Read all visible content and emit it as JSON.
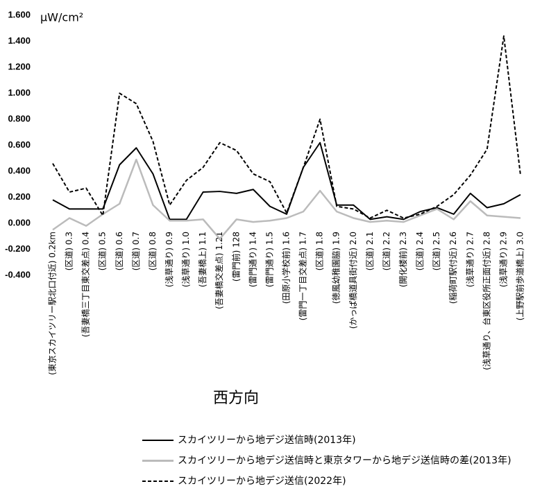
{
  "chart_data": {
    "type": "line",
    "y_unit": "μW/cm²",
    "x_label": "西方向",
    "categories": [
      "(東京スカイツリー駅北口付近) 0.2km",
      "(区道) 0.3",
      "(吾妻橋三丁目東交差点) 0.4",
      "(区道) 0.5",
      "(区道) 0.6",
      "(区道) 0.7",
      "(区道) 0.8",
      "(浅草通り) 0.9",
      "(浅草通り) 1.0",
      "(吾妻橋上) 1.1",
      "(吾妻橋交差点) 1.21",
      "(雷門前) 128",
      "(雷門通り) 1.4",
      "(雷門通り) 1.5",
      "(田原小学校前) 1.6",
      "(雷門一丁目交差点) 1.7",
      "(区道) 1.8",
      "(徳風幼稚園脇) 1.9",
      "(かっぱ橋道具街付近) 2.0",
      "(区道) 2.1",
      "(区道) 2.2",
      "(開化楼前) 2.3",
      "(区道) 2.4",
      "(区道) 2.5",
      "(稲荷町駅付近) 2.6",
      "(浅草通り) 2.7",
      "(浅草通り、台東区役所正面付近) 2.8",
      "(浅草通り) 2.9",
      "(上野駅前歩道橋上) 3.0"
    ],
    "series": [
      {
        "name": "スカイツリーから地デジ送信時(2013年)",
        "color": "#000000",
        "style": "solid",
        "values": [
          0.18,
          0.11,
          0.11,
          0.11,
          0.45,
          0.58,
          0.38,
          0.03,
          0.03,
          0.24,
          0.245,
          0.23,
          0.26,
          0.13,
          0.07,
          0.43,
          0.62,
          0.14,
          0.14,
          0.03,
          0.05,
          0.03,
          0.09,
          0.12,
          0.07,
          0.23,
          0.12,
          0.15,
          0.22
        ]
      },
      {
        "name": "スカイツリーから地デジ送信時と東京タワーから地デジ送信時の差(2013年)",
        "color": "#bbbbbb",
        "style": "solid",
        "values": [
          -0.05,
          0.04,
          -0.02,
          0.07,
          0.15,
          0.49,
          0.14,
          0.02,
          0.02,
          0.03,
          -0.12,
          0.03,
          0.01,
          0.02,
          0.04,
          0.09,
          0.25,
          0.09,
          0.04,
          0.01,
          0.02,
          0.01,
          0.06,
          0.11,
          0.03,
          0.17,
          0.06,
          0.05,
          0.04
        ]
      },
      {
        "name": "スカイツリーから地デジ送信(2022年)",
        "color": "#000000",
        "style": "dashed",
        "values": [
          0.46,
          0.24,
          0.27,
          0.06,
          1.0,
          0.92,
          0.63,
          0.14,
          0.33,
          0.43,
          0.62,
          0.56,
          0.38,
          0.32,
          0.08,
          0.43,
          0.8,
          0.13,
          0.11,
          0.04,
          0.1,
          0.04,
          0.07,
          0.13,
          0.22,
          0.37,
          0.57,
          1.44,
          0.37
        ]
      }
    ],
    "ylim": [
      -0.4,
      1.6
    ],
    "yticks": [
      {
        "value": -0.4,
        "label": "-0.400"
      },
      {
        "value": -0.2,
        "label": "-0.200"
      },
      {
        "value": 0,
        "label": "0.000"
      },
      {
        "value": 0.2,
        "label": "0.200"
      },
      {
        "value": 0.4,
        "label": "0.400"
      },
      {
        "value": 0.6,
        "label": "0.600"
      },
      {
        "value": 0.8,
        "label": "0.800"
      },
      {
        "value": 1,
        "label": "1.000"
      },
      {
        "value": 1.2,
        "label": "1.200"
      },
      {
        "value": 1.4,
        "label": "1.400"
      },
      {
        "value": 1.6,
        "label": "1.600"
      }
    ],
    "grid": false
  }
}
